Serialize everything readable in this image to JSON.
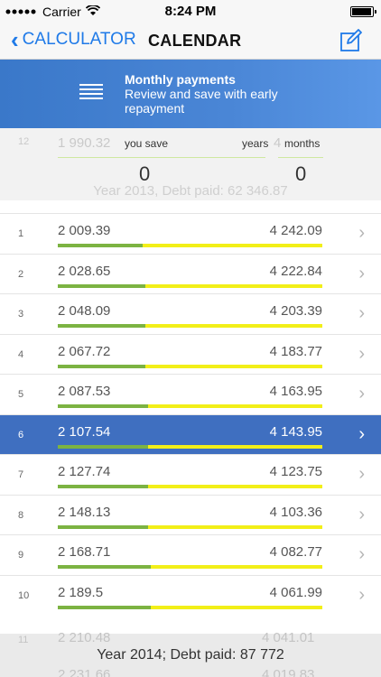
{
  "status": {
    "carrier": "Carrier",
    "time": "8:24 PM"
  },
  "nav": {
    "back_label": "CALCULATOR",
    "title": "CALENDAR"
  },
  "banner": {
    "title": "Monthly payments",
    "subtitle": "Review and save with early repayment"
  },
  "summary": {
    "ghost_index": "12",
    "ghost_value": "1 990.32",
    "ghost_right": "4",
    "you_save_label": "you save",
    "years_label": "years",
    "months_label": "months",
    "you_save_value": "0",
    "months_value": "0",
    "ghost_year_text": "Year 2013, Debt paid: 62 346.87"
  },
  "rows": [
    {
      "index": "1",
      "left": "2 009.39",
      "right": "4 242.09",
      "progress": 0.32,
      "selected": false
    },
    {
      "index": "2",
      "left": "2 028.65",
      "right": "4 222.84",
      "progress": 0.33,
      "selected": false
    },
    {
      "index": "3",
      "left": "2 048.09",
      "right": "4 203.39",
      "progress": 0.33,
      "selected": false
    },
    {
      "index": "4",
      "left": "2 067.72",
      "right": "4 183.77",
      "progress": 0.33,
      "selected": false
    },
    {
      "index": "5",
      "left": "2 087.53",
      "right": "4 163.95",
      "progress": 0.34,
      "selected": false
    },
    {
      "index": "6",
      "left": "2 107.54",
      "right": "4 143.95",
      "progress": 0.34,
      "selected": true
    },
    {
      "index": "7",
      "left": "2 127.74",
      "right": "4 123.75",
      "progress": 0.34,
      "selected": false
    },
    {
      "index": "8",
      "left": "2 148.13",
      "right": "4 103.36",
      "progress": 0.34,
      "selected": false
    },
    {
      "index": "9",
      "left": "2 168.71",
      "right": "4 082.77",
      "progress": 0.35,
      "selected": false
    },
    {
      "index": "10",
      "left": "2 189.5",
      "right": "4 061.99",
      "progress": 0.35,
      "selected": false
    }
  ],
  "footer": {
    "ghost_index": "11",
    "ghost_left_1": "2 210.48",
    "ghost_right_1": "4 041.01",
    "ghost_left_2": "2 231.66",
    "ghost_right_2": "4 019.83",
    "year_text": "Year 2014; Debt paid: 87 772"
  },
  "colors": {
    "accent": "#1f7ae8",
    "banner": "#4a86d6",
    "selected_row": "#3f6fc0",
    "progress_green": "#7cb342",
    "progress_yellow": "#f2ef18"
  }
}
